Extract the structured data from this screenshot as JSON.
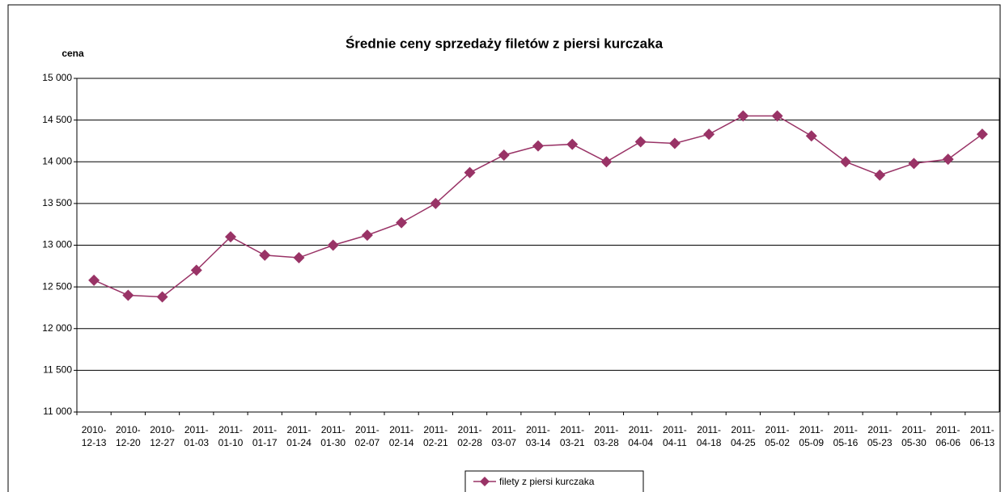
{
  "chart_data": {
    "type": "line",
    "title": "Średnie ceny sprzedaży filetów z piersi kurczaka",
    "y_label": "cena",
    "categories": [
      "2010-12-13",
      "2010-12-20",
      "2010-12-27",
      "2011-01-03",
      "2011-01-10",
      "2011-01-17",
      "2011-01-24",
      "2011-01-30",
      "2011-02-07",
      "2011-02-14",
      "2011-02-21",
      "2011-02-28",
      "2011-03-07",
      "2011-03-14",
      "2011-03-21",
      "2011-03-28",
      "2011-04-04",
      "2011-04-11",
      "2011-04-18",
      "2011-04-25",
      "2011-05-02",
      "2011-05-09",
      "2011-05-16",
      "2011-05-23",
      "2011-05-30",
      "2011-06-06",
      "2011-06-13"
    ],
    "series": [
      {
        "name": "filety z piersi kurczaka",
        "color": "#993366",
        "values": [
          12580,
          12400,
          12380,
          12700,
          13100,
          12880,
          12850,
          13000,
          13120,
          13270,
          13500,
          13870,
          14080,
          14190,
          14210,
          14000,
          14240,
          14220,
          14330,
          14550,
          14550,
          14310,
          14000,
          13840,
          13980,
          14030,
          14330
        ]
      }
    ],
    "ylim": [
      11000,
      15000
    ],
    "yticks": [
      {
        "value": 11000,
        "label": "11 000"
      },
      {
        "value": 11500,
        "label": "11 500"
      },
      {
        "value": 12000,
        "label": "12 000"
      },
      {
        "value": 12500,
        "label": "12 500"
      },
      {
        "value": 13000,
        "label": "13 000"
      },
      {
        "value": 13500,
        "label": "13 500"
      },
      {
        "value": 14000,
        "label": "14 000"
      },
      {
        "value": 14500,
        "label": "14 500"
      },
      {
        "value": 15000,
        "label": "15 000"
      }
    ],
    "grid": true,
    "legend": "bottom"
  }
}
